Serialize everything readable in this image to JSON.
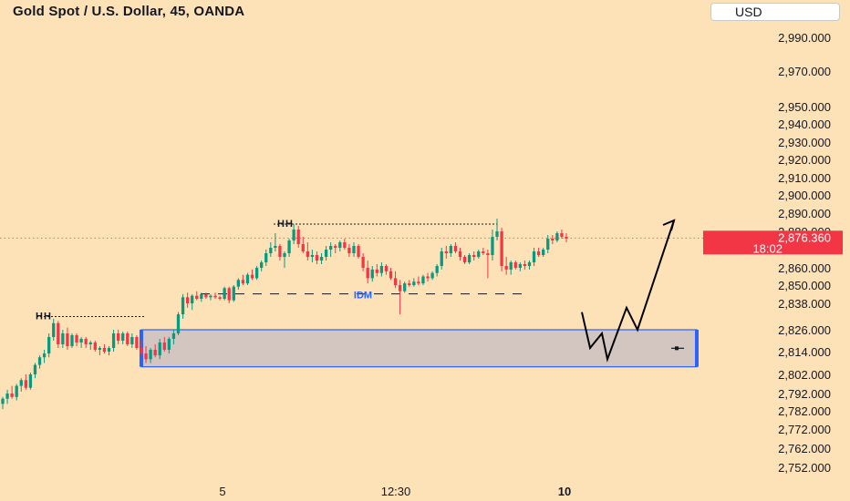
{
  "title": "Gold Spot / U.S. Dollar, 45, OANDA",
  "currency": "USD",
  "colors": {
    "background": "#fde2b8",
    "up": "#089981",
    "down": "#f23645",
    "zone_fill": "#d3c5bf",
    "zone_border": "#2962ff",
    "idm": "#2962ff",
    "price_tag": "#f23645"
  },
  "chart_data": {
    "type": "candlestick",
    "y_ticks": [
      "2,990.000",
      "2,970.000",
      "2,950.000",
      "2,940.000",
      "2,930.000",
      "2,920.000",
      "2,910.000",
      "2,900.000",
      "2,890.000",
      "2,880.000",
      "2,860.000",
      "2,850.000",
      "2,838.000",
      "2,826.000",
      "2,814.000",
      "2,802.000",
      "2,792.000",
      "2,782.000",
      "2,772.000",
      "2,762.000",
      "2,752.000"
    ],
    "x_ticks": [
      {
        "label": "5",
        "bold": false
      },
      {
        "label": "12:30",
        "bold": false
      },
      {
        "label": "10",
        "bold": true
      }
    ],
    "last_price": "2,876.360",
    "countdown": "18:02",
    "annotations": [
      {
        "label": "HH",
        "level": 2832
      },
      {
        "label": "HH",
        "level": 2884
      },
      {
        "label": "IDM",
        "level": 2840
      }
    ],
    "demand_zone": {
      "top": 2826,
      "bottom": 2806
    },
    "projection_path": [
      2834,
      2816,
      2824,
      2810,
      2836,
      2826,
      2886
    ],
    "candles": [
      {
        "o": 2786,
        "h": 2790,
        "l": 2783,
        "c": 2789
      },
      {
        "o": 2789,
        "h": 2794,
        "l": 2786,
        "c": 2792
      },
      {
        "o": 2792,
        "h": 2796,
        "l": 2789,
        "c": 2790
      },
      {
        "o": 2790,
        "h": 2797,
        "l": 2788,
        "c": 2796
      },
      {
        "o": 2796,
        "h": 2800,
        "l": 2793,
        "c": 2799
      },
      {
        "o": 2799,
        "h": 2802,
        "l": 2794,
        "c": 2795
      },
      {
        "o": 2795,
        "h": 2803,
        "l": 2794,
        "c": 2802
      },
      {
        "o": 2802,
        "h": 2808,
        "l": 2800,
        "c": 2807
      },
      {
        "o": 2807,
        "h": 2812,
        "l": 2805,
        "c": 2811
      },
      {
        "o": 2811,
        "h": 2815,
        "l": 2808,
        "c": 2813
      },
      {
        "o": 2813,
        "h": 2824,
        "l": 2811,
        "c": 2822
      },
      {
        "o": 2822,
        "h": 2831,
        "l": 2820,
        "c": 2829
      },
      {
        "o": 2829,
        "h": 2830,
        "l": 2816,
        "c": 2818
      },
      {
        "o": 2818,
        "h": 2826,
        "l": 2816,
        "c": 2824
      },
      {
        "o": 2824,
        "h": 2827,
        "l": 2815,
        "c": 2817
      },
      {
        "o": 2817,
        "h": 2824,
        "l": 2816,
        "c": 2823
      },
      {
        "o": 2823,
        "h": 2824,
        "l": 2817,
        "c": 2819
      },
      {
        "o": 2819,
        "h": 2822,
        "l": 2816,
        "c": 2821
      },
      {
        "o": 2821,
        "h": 2822,
        "l": 2816,
        "c": 2818
      },
      {
        "o": 2818,
        "h": 2820,
        "l": 2815,
        "c": 2819
      },
      {
        "o": 2819,
        "h": 2820,
        "l": 2814,
        "c": 2815
      },
      {
        "o": 2815,
        "h": 2817,
        "l": 2812,
        "c": 2816
      },
      {
        "o": 2816,
        "h": 2818,
        "l": 2813,
        "c": 2814
      },
      {
        "o": 2814,
        "h": 2817,
        "l": 2812,
        "c": 2816
      },
      {
        "o": 2816,
        "h": 2826,
        "l": 2814,
        "c": 2824
      },
      {
        "o": 2824,
        "h": 2826,
        "l": 2818,
        "c": 2820
      },
      {
        "o": 2820,
        "h": 2825,
        "l": 2818,
        "c": 2824
      },
      {
        "o": 2824,
        "h": 2825,
        "l": 2817,
        "c": 2818
      },
      {
        "o": 2818,
        "h": 2824,
        "l": 2816,
        "c": 2822
      },
      {
        "o": 2822,
        "h": 2823,
        "l": 2815,
        "c": 2816
      },
      {
        "o": 2816,
        "h": 2820,
        "l": 2812,
        "c": 2813
      },
      {
        "o": 2813,
        "h": 2817,
        "l": 2808,
        "c": 2810
      },
      {
        "o": 2810,
        "h": 2816,
        "l": 2808,
        "c": 2815
      },
      {
        "o": 2815,
        "h": 2818,
        "l": 2811,
        "c": 2812
      },
      {
        "o": 2812,
        "h": 2821,
        "l": 2810,
        "c": 2819
      },
      {
        "o": 2819,
        "h": 2822,
        "l": 2814,
        "c": 2815
      },
      {
        "o": 2815,
        "h": 2822,
        "l": 2813,
        "c": 2821
      },
      {
        "o": 2821,
        "h": 2826,
        "l": 2818,
        "c": 2824
      },
      {
        "o": 2824,
        "h": 2834,
        "l": 2823,
        "c": 2833
      },
      {
        "o": 2833,
        "h": 2844,
        "l": 2831,
        "c": 2842
      },
      {
        "o": 2842,
        "h": 2845,
        "l": 2836,
        "c": 2838
      },
      {
        "o": 2838,
        "h": 2844,
        "l": 2835,
        "c": 2843
      },
      {
        "o": 2843,
        "h": 2846,
        "l": 2840,
        "c": 2841
      },
      {
        "o": 2841,
        "h": 2845,
        "l": 2839,
        "c": 2844
      },
      {
        "o": 2844,
        "h": 2845,
        "l": 2841,
        "c": 2842
      },
      {
        "o": 2842,
        "h": 2844,
        "l": 2840,
        "c": 2843
      },
      {
        "o": 2843,
        "h": 2845,
        "l": 2841,
        "c": 2842
      },
      {
        "o": 2842,
        "h": 2843,
        "l": 2840,
        "c": 2841
      },
      {
        "o": 2841,
        "h": 2849,
        "l": 2840,
        "c": 2848
      },
      {
        "o": 2848,
        "h": 2849,
        "l": 2838,
        "c": 2840
      },
      {
        "o": 2840,
        "h": 2850,
        "l": 2839,
        "c": 2849
      },
      {
        "o": 2849,
        "h": 2854,
        "l": 2847,
        "c": 2853
      },
      {
        "o": 2853,
        "h": 2856,
        "l": 2850,
        "c": 2851
      },
      {
        "o": 2851,
        "h": 2857,
        "l": 2850,
        "c": 2856
      },
      {
        "o": 2856,
        "h": 2859,
        "l": 2853,
        "c": 2854
      },
      {
        "o": 2854,
        "h": 2861,
        "l": 2853,
        "c": 2860
      },
      {
        "o": 2860,
        "h": 2864,
        "l": 2858,
        "c": 2863
      },
      {
        "o": 2863,
        "h": 2870,
        "l": 2861,
        "c": 2868
      },
      {
        "o": 2868,
        "h": 2874,
        "l": 2866,
        "c": 2871
      },
      {
        "o": 2871,
        "h": 2879,
        "l": 2869,
        "c": 2872
      },
      {
        "o": 2872,
        "h": 2873,
        "l": 2864,
        "c": 2866
      },
      {
        "o": 2866,
        "h": 2869,
        "l": 2860,
        "c": 2868
      },
      {
        "o": 2868,
        "h": 2876,
        "l": 2866,
        "c": 2875
      },
      {
        "o": 2875,
        "h": 2884,
        "l": 2873,
        "c": 2881
      },
      {
        "o": 2881,
        "h": 2883,
        "l": 2871,
        "c": 2873
      },
      {
        "o": 2873,
        "h": 2877,
        "l": 2868,
        "c": 2869
      },
      {
        "o": 2869,
        "h": 2874,
        "l": 2864,
        "c": 2866
      },
      {
        "o": 2866,
        "h": 2870,
        "l": 2863,
        "c": 2867
      },
      {
        "o": 2867,
        "h": 2869,
        "l": 2862,
        "c": 2864
      },
      {
        "o": 2864,
        "h": 2868,
        "l": 2862,
        "c": 2866
      },
      {
        "o": 2866,
        "h": 2872,
        "l": 2864,
        "c": 2870
      },
      {
        "o": 2870,
        "h": 2874,
        "l": 2866,
        "c": 2872
      },
      {
        "o": 2872,
        "h": 2873,
        "l": 2868,
        "c": 2871
      },
      {
        "o": 2871,
        "h": 2875,
        "l": 2869,
        "c": 2874
      },
      {
        "o": 2874,
        "h": 2876,
        "l": 2870,
        "c": 2871
      },
      {
        "o": 2871,
        "h": 2873,
        "l": 2866,
        "c": 2868
      },
      {
        "o": 2868,
        "h": 2874,
        "l": 2866,
        "c": 2872
      },
      {
        "o": 2872,
        "h": 2873,
        "l": 2865,
        "c": 2866
      },
      {
        "o": 2866,
        "h": 2868,
        "l": 2858,
        "c": 2860
      },
      {
        "o": 2860,
        "h": 2864,
        "l": 2851,
        "c": 2854
      },
      {
        "o": 2854,
        "h": 2861,
        "l": 2852,
        "c": 2859
      },
      {
        "o": 2859,
        "h": 2862,
        "l": 2855,
        "c": 2857
      },
      {
        "o": 2857,
        "h": 2863,
        "l": 2855,
        "c": 2861
      },
      {
        "o": 2861,
        "h": 2862,
        "l": 2856,
        "c": 2858
      },
      {
        "o": 2858,
        "h": 2860,
        "l": 2853,
        "c": 2854
      },
      {
        "o": 2854,
        "h": 2858,
        "l": 2848,
        "c": 2850
      },
      {
        "o": 2850,
        "h": 2853,
        "l": 2833,
        "c": 2846
      },
      {
        "o": 2846,
        "h": 2852,
        "l": 2845,
        "c": 2851
      },
      {
        "o": 2851,
        "h": 2853,
        "l": 2849,
        "c": 2850
      },
      {
        "o": 2850,
        "h": 2854,
        "l": 2849,
        "c": 2852
      },
      {
        "o": 2852,
        "h": 2855,
        "l": 2850,
        "c": 2851
      },
      {
        "o": 2851,
        "h": 2856,
        "l": 2850,
        "c": 2855
      },
      {
        "o": 2855,
        "h": 2857,
        "l": 2852,
        "c": 2854
      },
      {
        "o": 2854,
        "h": 2858,
        "l": 2853,
        "c": 2857
      },
      {
        "o": 2857,
        "h": 2862,
        "l": 2855,
        "c": 2861
      },
      {
        "o": 2861,
        "h": 2871,
        "l": 2859,
        "c": 2869
      },
      {
        "o": 2869,
        "h": 2872,
        "l": 2865,
        "c": 2868
      },
      {
        "o": 2868,
        "h": 2873,
        "l": 2866,
        "c": 2872
      },
      {
        "o": 2872,
        "h": 2874,
        "l": 2868,
        "c": 2869
      },
      {
        "o": 2869,
        "h": 2871,
        "l": 2864,
        "c": 2866
      },
      {
        "o": 2866,
        "h": 2867,
        "l": 2862,
        "c": 2863
      },
      {
        "o": 2863,
        "h": 2868,
        "l": 2862,
        "c": 2867
      },
      {
        "o": 2867,
        "h": 2869,
        "l": 2864,
        "c": 2866
      },
      {
        "o": 2866,
        "h": 2870,
        "l": 2865,
        "c": 2869
      },
      {
        "o": 2869,
        "h": 2871,
        "l": 2867,
        "c": 2868
      },
      {
        "o": 2868,
        "h": 2870,
        "l": 2854,
        "c": 2867
      },
      {
        "o": 2867,
        "h": 2881,
        "l": 2864,
        "c": 2877
      },
      {
        "o": 2877,
        "h": 2887,
        "l": 2875,
        "c": 2880
      },
      {
        "o": 2880,
        "h": 2882,
        "l": 2858,
        "c": 2861
      },
      {
        "o": 2861,
        "h": 2866,
        "l": 2856,
        "c": 2859
      },
      {
        "o": 2859,
        "h": 2864,
        "l": 2856,
        "c": 2863
      },
      {
        "o": 2863,
        "h": 2864,
        "l": 2859,
        "c": 2860
      },
      {
        "o": 2860,
        "h": 2863,
        "l": 2858,
        "c": 2862
      },
      {
        "o": 2862,
        "h": 2864,
        "l": 2859,
        "c": 2861
      },
      {
        "o": 2861,
        "h": 2864,
        "l": 2859,
        "c": 2863
      },
      {
        "o": 2863,
        "h": 2871,
        "l": 2861,
        "c": 2869
      },
      {
        "o": 2869,
        "h": 2871,
        "l": 2866,
        "c": 2867
      },
      {
        "o": 2867,
        "h": 2871,
        "l": 2866,
        "c": 2870
      },
      {
        "o": 2870,
        "h": 2878,
        "l": 2868,
        "c": 2876
      },
      {
        "o": 2876,
        "h": 2878,
        "l": 2873,
        "c": 2875
      },
      {
        "o": 2875,
        "h": 2880,
        "l": 2874,
        "c": 2879
      },
      {
        "o": 2879,
        "h": 2881,
        "l": 2876,
        "c": 2877
      },
      {
        "o": 2877,
        "h": 2879,
        "l": 2874,
        "c": 2876
      }
    ]
  }
}
